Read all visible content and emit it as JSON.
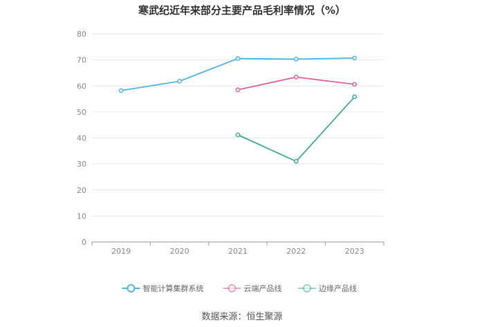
{
  "chart_data": {
    "type": "line",
    "title": "寒武纪近年来部分主要产品毛利率情况（%）",
    "categories": [
      "2019",
      "2020",
      "2021",
      "2022",
      "2023"
    ],
    "ylim": [
      0,
      80
    ],
    "yticks": [
      0,
      10,
      20,
      30,
      40,
      50,
      60,
      70,
      80
    ],
    "grid": true,
    "legend_position": "bottom",
    "series": [
      {
        "name": "智能计算集群系统",
        "color": "#4db6e8",
        "values": [
          58.2,
          61.8,
          70.5,
          70.3,
          70.7
        ]
      },
      {
        "name": "云端产品线",
        "color": "#e0609e",
        "values": [
          null,
          null,
          58.5,
          63.4,
          60.6
        ]
      },
      {
        "name": "边缘产品线",
        "color": "#3fae93",
        "values": [
          null,
          null,
          41.2,
          31.0,
          55.8
        ]
      }
    ]
  },
  "source": "数据来源：恒生聚源"
}
